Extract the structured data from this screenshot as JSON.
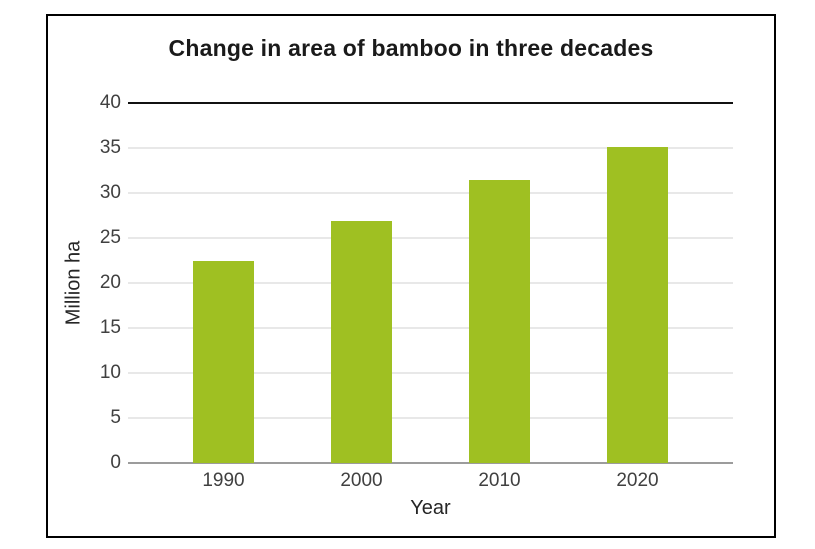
{
  "chart_data": {
    "type": "bar",
    "title": "Change in area of bamboo in three decades",
    "categories": [
      "1990",
      "2000",
      "2010",
      "2020"
    ],
    "values": [
      22.4,
      26.9,
      31.4,
      35.1
    ],
    "xlabel": "Year",
    "ylabel": "Million ha",
    "ylim": [
      0,
      40
    ],
    "ytick_step": 5,
    "yticks": [
      0,
      5,
      10,
      15,
      20,
      25,
      30,
      35,
      40
    ],
    "grid": true,
    "legend": false,
    "colors": {
      "bar": "#9fc022",
      "gridline": "#e8e8e8",
      "top_line": "#111111",
      "axis_line": "#9c9c9c",
      "tick_text": "#404040",
      "title_text": "#1a1a1a",
      "frame_border": "#000000",
      "background": "#ffffff"
    }
  }
}
